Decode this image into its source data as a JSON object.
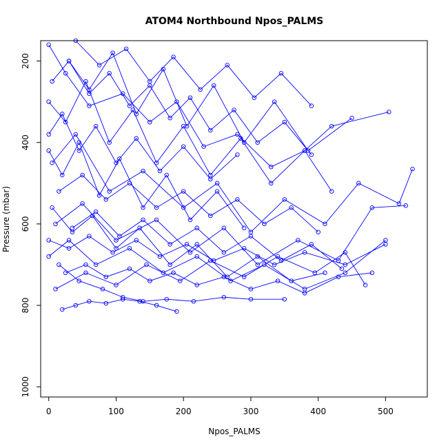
{
  "chart_data": {
    "type": "line",
    "title": "ATOM4 Northbound Npos_PALMS",
    "xlabel": "Npos_PALMS",
    "ylabel": "Pressure (mbar)",
    "xlim": [
      -12,
      562
    ],
    "ylim": [
      1025,
      150
    ],
    "y_reversed": true,
    "xticks": [
      0,
      100,
      200,
      300,
      400,
      500
    ],
    "yticks": [
      200,
      400,
      600,
      800,
      1000
    ],
    "grid": false,
    "legend": "none",
    "series_color": "#0000ff",
    "marker": "open-circle",
    "series": [
      {
        "x": [
          0,
          25,
          60,
          110,
          150,
          190,
          230,
          280,
          330,
          380,
          420,
          505
        ],
        "y": [
          160,
          230,
          310,
          280,
          350,
          300,
          410,
          380,
          460,
          420,
          360,
          325
        ]
      },
      {
        "x": [
          5,
          40,
          90,
          140,
          200,
          250,
          300,
          350,
          410,
          460,
          520,
          540
        ],
        "y": [
          450,
          380,
          520,
          470,
          560,
          500,
          620,
          540,
          600,
          500,
          550,
          465
        ]
      },
      {
        "x": [
          10,
          50,
          100,
          160,
          210,
          260,
          310,
          370,
          430,
          480,
          530
        ],
        "y": [
          600,
          550,
          640,
          590,
          670,
          610,
          700,
          640,
          690,
          560,
          555
        ]
      },
      {
        "x": [
          0,
          30,
          70,
          120,
          170,
          220,
          270,
          320,
          380,
          440,
          500
        ],
        "y": [
          680,
          640,
          700,
          660,
          720,
          680,
          740,
          700,
          760,
          720,
          640
        ]
      },
      {
        "x": [
          15,
          45,
          80,
          110,
          140,
          175,
          215,
          260,
          300,
          350
        ],
        "y": [
          700,
          740,
          760,
          780,
          790,
          785,
          790,
          780,
          785,
          785
        ]
      },
      {
        "x": [
          20,
          40,
          60,
          85,
          110,
          135,
          160,
          190
        ],
        "y": [
          810,
          800,
          790,
          795,
          785,
          790,
          800,
          815
        ]
      },
      {
        "x": [
          0,
          20,
          45,
          75,
          105,
          140,
          175,
          210,
          250,
          290
        ],
        "y": [
          420,
          480,
          400,
          530,
          440,
          560,
          480,
          590,
          520,
          610
        ]
      },
      {
        "x": [
          30,
          60,
          95,
          130,
          170,
          205,
          245,
          290,
          335,
          385,
          450
        ],
        "y": [
          200,
          270,
          180,
          330,
          220,
          360,
          260,
          400,
          300,
          420,
          340
        ]
      },
      {
        "x": [
          5,
          35,
          65,
          100,
          135,
          180,
          220,
          265,
          310,
          360,
          410
        ],
        "y": [
          560,
          620,
          580,
          660,
          610,
          700,
          650,
          730,
          680,
          740,
          720
        ]
      },
      {
        "x": [
          10,
          55,
          100,
          145,
          195,
          240,
          290,
          340,
          395,
          440,
          470
        ],
        "y": [
          760,
          720,
          750,
          700,
          740,
          690,
          730,
          680,
          720,
          670,
          750
        ]
      },
      {
        "x": [
          0,
          25,
          55,
          90,
          125,
          160,
          200,
          240,
          285,
          330,
          380,
          420
        ],
        "y": [
          300,
          350,
          250,
          400,
          320,
          450,
          360,
          480,
          390,
          500,
          420,
          520
        ]
      },
      {
        "x": [
          40,
          75,
          115,
          150,
          185,
          225,
          265,
          305,
          345,
          390
        ],
        "y": [
          150,
          210,
          170,
          250,
          190,
          270,
          210,
          290,
          230,
          310
        ]
      },
      {
        "x": [
          0,
          30,
          60,
          95,
          130,
          165,
          205,
          245,
          290,
          335,
          380,
          440,
          500
        ],
        "y": [
          640,
          660,
          630,
          670,
          640,
          680,
          650,
          690,
          660,
          700,
          670,
          700,
          650
        ]
      },
      {
        "x": [
          15,
          50,
          85,
          120,
          160,
          200,
          240,
          280,
          320,
          360,
          400
        ],
        "y": [
          520,
          480,
          540,
          500,
          560,
          520,
          580,
          540,
          600,
          560,
          620
        ]
      },
      {
        "x": [
          0,
          20,
          45,
          70,
          100,
          130,
          165,
          200,
          240,
          280
        ],
        "y": [
          380,
          330,
          420,
          360,
          450,
          390,
          470,
          410,
          490,
          430
        ]
      },
      {
        "x": [
          25,
          55,
          85,
          120,
          150,
          185,
          220,
          260,
          300,
          340,
          380,
          430,
          480
        ],
        "y": [
          720,
          700,
          730,
          710,
          740,
          720,
          750,
          730,
          760,
          740,
          770,
          730,
          720
        ]
      },
      {
        "x": [
          5,
          30,
          60,
          90,
          120,
          150,
          180,
          210,
          240,
          275,
          310,
          350,
          390
        ],
        "y": [
          250,
          200,
          280,
          230,
          310,
          260,
          340,
          290,
          370,
          320,
          400,
          350,
          430
        ]
      },
      {
        "x": [
          35,
          70,
          105,
          140,
          180,
          220,
          260,
          300,
          345,
          390,
          435
        ],
        "y": [
          610,
          570,
          630,
          590,
          650,
          610,
          670,
          630,
          690,
          650,
          710
        ]
      }
    ]
  }
}
